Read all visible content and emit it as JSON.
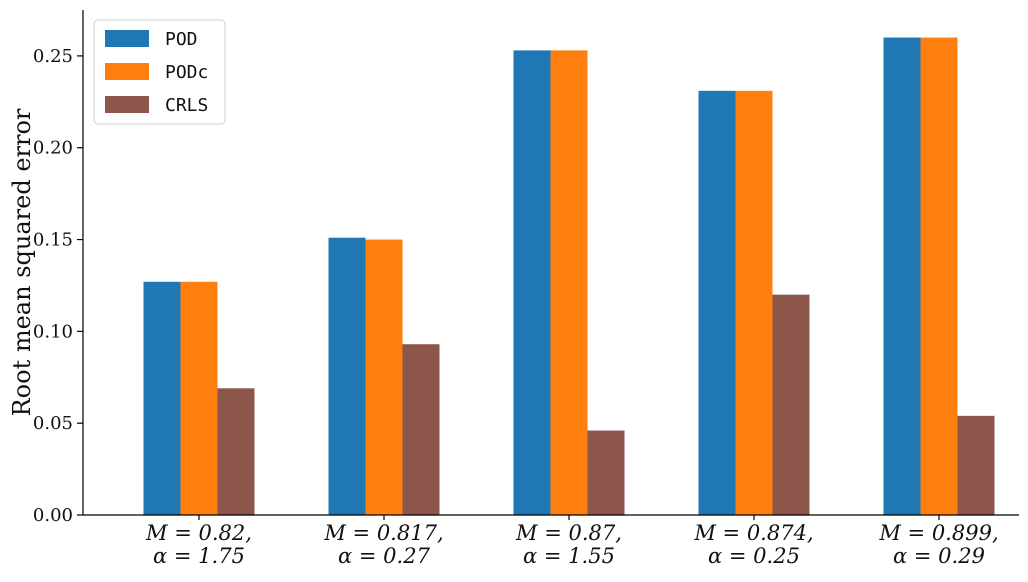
{
  "chart_data": {
    "type": "bar",
    "categories": [
      [
        "M = 0.82,",
        "α = 1.75"
      ],
      [
        "M = 0.817,",
        "α = 0.27"
      ],
      [
        "M = 0.87,",
        "α = 1.55"
      ],
      [
        "M = 0.874,",
        "α = 0.25"
      ],
      [
        "M = 0.899,",
        "α = 0.29"
      ]
    ],
    "series": [
      {
        "name": "POD",
        "color": "#1f77b4",
        "values": [
          0.127,
          0.151,
          0.253,
          0.231,
          0.26
        ]
      },
      {
        "name": "PODc",
        "color": "#ff7f0e",
        "values": [
          0.127,
          0.15,
          0.253,
          0.231,
          0.26
        ]
      },
      {
        "name": "CRLS",
        "color": "#8c564b",
        "values": [
          0.069,
          0.093,
          0.046,
          0.12,
          0.054
        ]
      }
    ],
    "title": "",
    "xlabel": "",
    "ylabel": "Root mean squared error",
    "ylim": [
      0,
      0.275
    ],
    "yticks": [
      0.0,
      0.05,
      0.1,
      0.15,
      0.2,
      0.25
    ],
    "ytick_labels": [
      "0.00",
      "0.05",
      "0.10",
      "0.15",
      "0.20",
      "0.25"
    ],
    "grid": false,
    "legend": "top-left"
  }
}
